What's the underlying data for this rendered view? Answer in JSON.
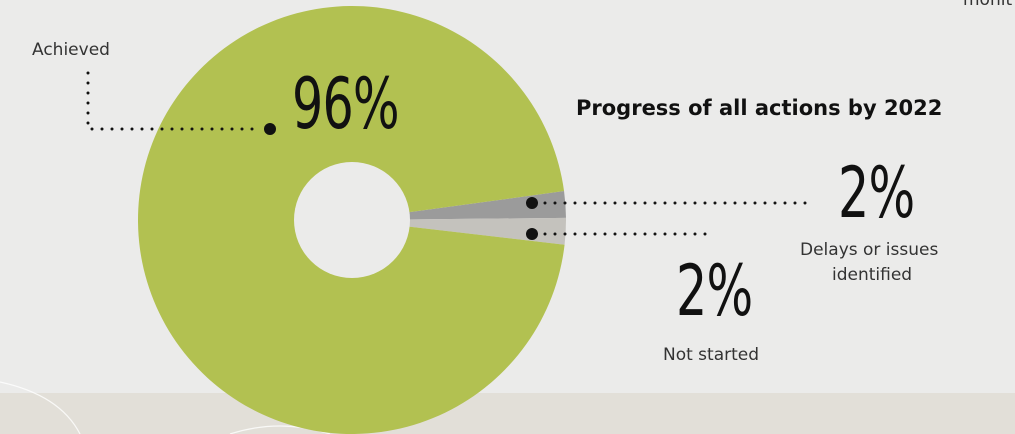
{
  "header_fragment": "monit",
  "chart_data": {
    "type": "pie",
    "title": "Progress of all actions by 2022",
    "donut": true,
    "slices": [
      {
        "label": "Achieved",
        "value": 96,
        "display": "96%",
        "color": "#b2c151"
      },
      {
        "label": "Delays or issues identified",
        "value": 2,
        "display": "2%",
        "color": "#9b9b9b"
      },
      {
        "label": "Not started",
        "value": 2,
        "display": "2%",
        "color": "#c4c2bd"
      }
    ]
  },
  "labels": {
    "achieved": "Achieved",
    "achieved_pct": "96%",
    "delays_pct": "2%",
    "delays_line1": "Delays or issues",
    "delays_line2": "identified",
    "not_started_pct": "2%",
    "not_started": "Not started"
  }
}
